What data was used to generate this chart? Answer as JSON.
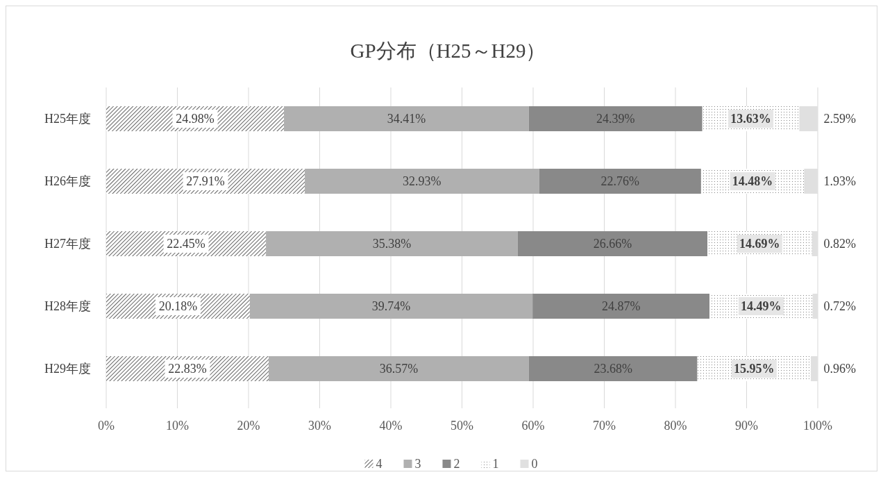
{
  "chart_data": {
    "type": "bar",
    "orientation": "horizontal",
    "stacked": true,
    "title": "GP分布（H25～H29）",
    "categories": [
      "H25年度",
      "H26年度",
      "H27年度",
      "H28年度",
      "H29年度"
    ],
    "series": [
      {
        "name": "4",
        "color": "#404040",
        "values": [
          24.98,
          27.91,
          22.45,
          20.18,
          22.83
        ],
        "value_labels": [
          "24.98%",
          "27.91%",
          "22.45%",
          "20.18%",
          "22.83%"
        ]
      },
      {
        "name": "3",
        "color": "#b0b0b0",
        "values": [
          34.41,
          32.93,
          35.38,
          39.74,
          36.57
        ],
        "value_labels": [
          "34.41%",
          "32.93%",
          "35.38%",
          "39.74%",
          "36.57%"
        ]
      },
      {
        "name": "2",
        "color": "#898989",
        "values": [
          24.39,
          22.76,
          26.66,
          24.87,
          23.68
        ],
        "value_labels": [
          "24.39%",
          "22.76%",
          "26.66%",
          "24.87%",
          "23.68%"
        ]
      },
      {
        "name": "1",
        "color": "#808080",
        "values": [
          13.63,
          14.48,
          14.69,
          14.49,
          15.95
        ],
        "value_labels": [
          "13.63%",
          "14.48%",
          "14.69%",
          "14.49%",
          "15.95%"
        ]
      },
      {
        "name": "0",
        "color": "#e0e0e0",
        "values": [
          2.59,
          1.93,
          0.82,
          0.72,
          0.96
        ],
        "value_labels": [
          "2.59%",
          "1.93%",
          "0.82%",
          "0.72%",
          "0.96%"
        ]
      }
    ],
    "xlim": [
      0,
      100
    ],
    "xticks": [
      {
        "value": 0,
        "label": "0%"
      },
      {
        "value": 10,
        "label": "10%"
      },
      {
        "value": 20,
        "label": "20%"
      },
      {
        "value": 30,
        "label": "30%"
      },
      {
        "value": 40,
        "label": "40%"
      },
      {
        "value": 50,
        "label": "50%"
      },
      {
        "value": 60,
        "label": "60%"
      },
      {
        "value": 70,
        "label": "70%"
      },
      {
        "value": 80,
        "label": "80%"
      },
      {
        "value": 90,
        "label": "90%"
      },
      {
        "value": 100,
        "label": "100%"
      }
    ],
    "grid": "x",
    "legend": "bottom"
  }
}
